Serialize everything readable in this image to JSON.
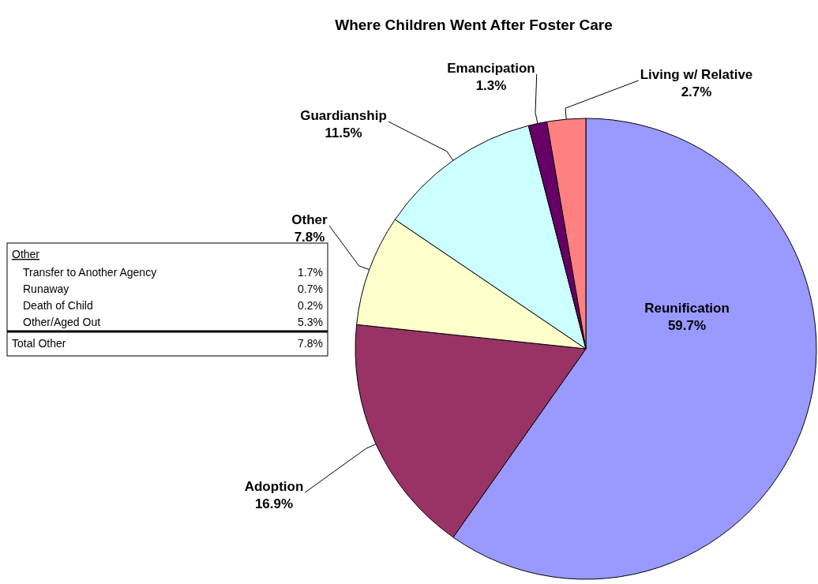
{
  "chart_data": {
    "type": "pie",
    "title": "Where Children Went After Foster Care",
    "categories": [
      "Reunification",
      "Adoption",
      "Other",
      "Guardianship",
      "Emancipation",
      "Living w/ Relative"
    ],
    "values": [
      59.7,
      16.9,
      7.8,
      11.5,
      1.3,
      2.7
    ],
    "value_labels": [
      "59.7%",
      "16.9%",
      "7.8%",
      "11.5%",
      "1.3%",
      "2.7%"
    ],
    "colors": [
      "#9999ff",
      "#993366",
      "#ffffcc",
      "#ccffff",
      "#660066",
      "#ff8080"
    ],
    "annotations": [
      "Other",
      "Transfer to Another Agency",
      "1.7%",
      "Runaway",
      "0.7%",
      "Death of Child",
      "0.2%",
      "Other/Aged Out",
      "5.3%",
      "Total Other",
      "7.8%"
    ]
  }
}
